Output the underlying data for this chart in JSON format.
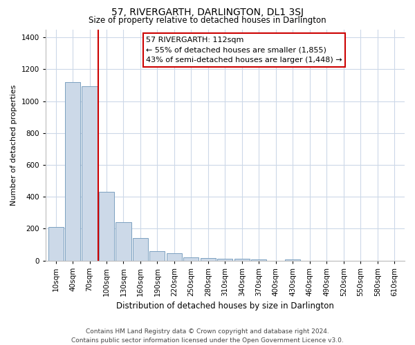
{
  "title": "57, RIVERGARTH, DARLINGTON, DL1 3SJ",
  "subtitle": "Size of property relative to detached houses in Darlington",
  "xlabel": "Distribution of detached houses by size in Darlington",
  "ylabel": "Number of detached properties",
  "bar_color": "#ccd9e8",
  "bar_edge_color": "#7ba0c0",
  "categories": [
    "10sqm",
    "40sqm",
    "70sqm",
    "100sqm",
    "130sqm",
    "160sqm",
    "190sqm",
    "220sqm",
    "250sqm",
    "280sqm",
    "310sqm",
    "340sqm",
    "370sqm",
    "400sqm",
    "430sqm",
    "460sqm",
    "490sqm",
    "520sqm",
    "550sqm",
    "580sqm",
    "610sqm"
  ],
  "values": [
    210,
    1120,
    1095,
    430,
    240,
    140,
    60,
    45,
    22,
    15,
    12,
    10,
    8,
    0,
    5,
    0,
    0,
    0,
    0,
    0,
    0
  ],
  "ylim": [
    0,
    1450
  ],
  "yticks": [
    0,
    200,
    400,
    600,
    800,
    1000,
    1200,
    1400
  ],
  "vline_x": 2.5,
  "vline_color": "#cc0000",
  "annotation_text": "57 RIVERGARTH: 112sqm\n← 55% of detached houses are smaller (1,855)\n43% of semi-detached houses are larger (1,448) →",
  "footer_line1": "Contains HM Land Registry data © Crown copyright and database right 2024.",
  "footer_line2": "Contains public sector information licensed under the Open Government Licence v3.0.",
  "background_color": "#ffffff",
  "grid_color": "#ccd8e8",
  "title_fontsize": 10,
  "subtitle_fontsize": 8.5,
  "xlabel_fontsize": 8.5,
  "ylabel_fontsize": 8,
  "tick_fontsize": 7.5,
  "footer_fontsize": 6.5,
  "ann_fontsize": 8
}
